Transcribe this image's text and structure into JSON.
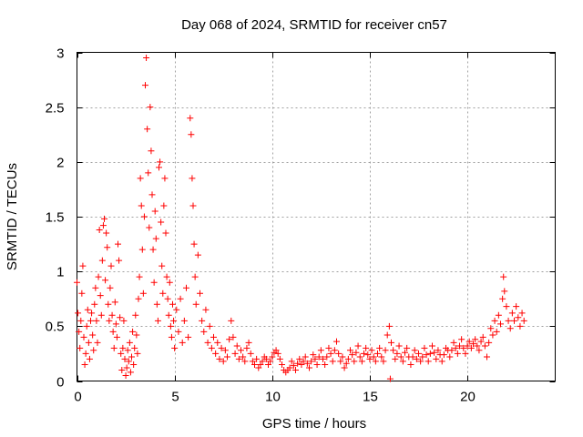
{
  "chart_data": {
    "type": "scatter",
    "title": "Day 068 of 2024, SRMTID for receiver cn57",
    "xlabel": "GPS time / hours",
    "ylabel": "SRMTID / TECUs",
    "xlim": [
      0,
      24.5
    ],
    "ylim": [
      0,
      3
    ],
    "xticks": [
      0,
      5,
      10,
      15,
      20
    ],
    "yticks": [
      0,
      0.5,
      1,
      1.5,
      2,
      2.5,
      3
    ],
    "xtick_labels": [
      "0",
      "5",
      "10",
      "15",
      "20"
    ],
    "ytick_labels": [
      "0",
      "0.5",
      "1",
      "1.5",
      "2",
      "2.5",
      "3"
    ],
    "grid": true,
    "marker": "+",
    "color": "#ff0000",
    "series": [
      {
        "name": "SRMTID",
        "points": [
          [
            0.0,
            0.9
          ],
          [
            0.05,
            0.62
          ],
          [
            0.1,
            0.45
          ],
          [
            0.15,
            0.3
          ],
          [
            0.2,
            0.55
          ],
          [
            0.25,
            0.8
          ],
          [
            0.3,
            1.05
          ],
          [
            0.35,
            0.4
          ],
          [
            0.4,
            0.15
          ],
          [
            0.45,
            0.25
          ],
          [
            0.5,
            0.5
          ],
          [
            0.55,
            0.65
          ],
          [
            0.6,
            0.35
          ],
          [
            0.65,
            0.2
          ],
          [
            0.7,
            0.55
          ],
          [
            0.75,
            0.62
          ],
          [
            0.8,
            0.42
          ],
          [
            0.85,
            0.28
          ],
          [
            0.9,
            0.7
          ],
          [
            0.95,
            0.85
          ],
          [
            1.0,
            0.55
          ],
          [
            1.05,
            0.35
          ],
          [
            1.1,
            0.95
          ],
          [
            1.15,
            1.38
          ],
          [
            1.2,
            0.78
          ],
          [
            1.25,
            0.6
          ],
          [
            1.3,
            1.1
          ],
          [
            1.35,
            1.42
          ],
          [
            1.4,
            1.48
          ],
          [
            1.45,
            0.92
          ],
          [
            1.5,
            1.35
          ],
          [
            1.55,
            1.22
          ],
          [
            1.6,
            0.7
          ],
          [
            1.65,
            0.55
          ],
          [
            1.7,
            0.85
          ],
          [
            1.75,
            1.05
          ],
          [
            1.8,
            0.6
          ],
          [
            1.85,
            0.45
          ],
          [
            1.9,
            0.3
          ],
          [
            1.95,
            0.72
          ],
          [
            2.0,
            0.52
          ],
          [
            2.05,
            0.4
          ],
          [
            2.1,
            1.25
          ],
          [
            2.15,
            1.1
          ],
          [
            2.2,
            0.58
          ],
          [
            2.25,
            0.25
          ],
          [
            2.3,
            0.1
          ],
          [
            2.35,
            0.3
          ],
          [
            2.4,
            0.55
          ],
          [
            2.45,
            0.2
          ],
          [
            2.5,
            0.05
          ],
          [
            2.55,
            0.12
          ],
          [
            2.6,
            0.28
          ],
          [
            2.65,
            0.18
          ],
          [
            2.7,
            0.35
          ],
          [
            2.75,
            0.08
          ],
          [
            2.8,
            0.22
          ],
          [
            2.85,
            0.45
          ],
          [
            2.9,
            0.15
          ],
          [
            2.95,
            0.3
          ],
          [
            3.0,
            0.6
          ],
          [
            3.05,
            0.42
          ],
          [
            3.1,
            0.25
          ],
          [
            3.15,
            0.75
          ],
          [
            3.2,
            0.95
          ],
          [
            3.25,
            1.85
          ],
          [
            3.3,
            1.6
          ],
          [
            3.35,
            1.2
          ],
          [
            3.4,
            0.8
          ],
          [
            3.45,
            1.5
          ],
          [
            3.5,
            2.7
          ],
          [
            3.55,
            2.95
          ],
          [
            3.6,
            2.3
          ],
          [
            3.65,
            1.9
          ],
          [
            3.7,
            1.4
          ],
          [
            3.75,
            2.5
          ],
          [
            3.8,
            2.1
          ],
          [
            3.85,
            1.7
          ],
          [
            3.9,
            1.2
          ],
          [
            3.95,
            0.9
          ],
          [
            4.0,
            1.55
          ],
          [
            4.05,
            1.3
          ],
          [
            4.1,
            0.7
          ],
          [
            4.15,
            0.55
          ],
          [
            4.2,
            1.95
          ],
          [
            4.25,
            2.0
          ],
          [
            4.3,
            1.45
          ],
          [
            4.35,
            1.05
          ],
          [
            4.4,
            0.8
          ],
          [
            4.45,
            1.6
          ],
          [
            4.5,
            1.85
          ],
          [
            4.55,
            1.35
          ],
          [
            4.6,
            0.95
          ],
          [
            4.65,
            0.75
          ],
          [
            4.7,
            0.6
          ],
          [
            4.75,
            0.9
          ],
          [
            4.8,
            0.5
          ],
          [
            4.85,
            0.4
          ],
          [
            4.9,
            0.7
          ],
          [
            4.95,
            0.55
          ],
          [
            5.0,
            0.3
          ],
          [
            5.1,
            0.65
          ],
          [
            5.2,
            0.45
          ],
          [
            5.3,
            0.75
          ],
          [
            5.4,
            0.35
          ],
          [
            5.5,
            0.55
          ],
          [
            5.6,
            0.85
          ],
          [
            5.7,
            0.4
          ],
          [
            5.8,
            2.4
          ],
          [
            5.85,
            2.25
          ],
          [
            5.9,
            1.85
          ],
          [
            5.95,
            1.6
          ],
          [
            6.0,
            1.25
          ],
          [
            6.05,
            0.95
          ],
          [
            6.1,
            0.7
          ],
          [
            6.2,
            1.15
          ],
          [
            6.3,
            0.8
          ],
          [
            6.4,
            0.55
          ],
          [
            6.5,
            0.45
          ],
          [
            6.6,
            0.65
          ],
          [
            6.7,
            0.35
          ],
          [
            6.8,
            0.5
          ],
          [
            6.9,
            0.3
          ],
          [
            7.0,
            0.4
          ],
          [
            7.1,
            0.25
          ],
          [
            7.2,
            0.35
          ],
          [
            7.3,
            0.2
          ],
          [
            7.4,
            0.3
          ],
          [
            7.5,
            0.18
          ],
          [
            7.6,
            0.28
          ],
          [
            7.7,
            0.22
          ],
          [
            7.8,
            0.38
          ],
          [
            7.9,
            0.55
          ],
          [
            8.0,
            0.4
          ],
          [
            8.1,
            0.25
          ],
          [
            8.2,
            0.32
          ],
          [
            8.3,
            0.2
          ],
          [
            8.4,
            0.28
          ],
          [
            8.5,
            0.22
          ],
          [
            8.6,
            0.18
          ],
          [
            8.7,
            0.3
          ],
          [
            8.8,
            0.35
          ],
          [
            8.9,
            0.25
          ],
          [
            9.0,
            0.18
          ],
          [
            9.1,
            0.15
          ],
          [
            9.2,
            0.2
          ],
          [
            9.3,
            0.12
          ],
          [
            9.4,
            0.15
          ],
          [
            9.5,
            0.18
          ],
          [
            9.6,
            0.22
          ],
          [
            9.7,
            0.2
          ],
          [
            9.8,
            0.15
          ],
          [
            9.9,
            0.18
          ],
          [
            10.0,
            0.22
          ],
          [
            10.1,
            0.26
          ],
          [
            10.2,
            0.28
          ],
          [
            10.3,
            0.25
          ],
          [
            10.4,
            0.2
          ],
          [
            10.5,
            0.15
          ],
          [
            10.6,
            0.1
          ],
          [
            10.7,
            0.08
          ],
          [
            10.8,
            0.1
          ],
          [
            10.9,
            0.12
          ],
          [
            11.0,
            0.18
          ],
          [
            11.1,
            0.14
          ],
          [
            11.2,
            0.1
          ],
          [
            11.3,
            0.16
          ],
          [
            11.4,
            0.2
          ],
          [
            11.5,
            0.15
          ],
          [
            11.6,
            0.18
          ],
          [
            11.7,
            0.22
          ],
          [
            11.8,
            0.16
          ],
          [
            11.9,
            0.12
          ],
          [
            12.0,
            0.18
          ],
          [
            12.1,
            0.24
          ],
          [
            12.2,
            0.2
          ],
          [
            12.3,
            0.15
          ],
          [
            12.4,
            0.22
          ],
          [
            12.5,
            0.28
          ],
          [
            12.6,
            0.2
          ],
          [
            12.7,
            0.15
          ],
          [
            12.8,
            0.22
          ],
          [
            12.9,
            0.3
          ],
          [
            13.0,
            0.25
          ],
          [
            13.1,
            0.18
          ],
          [
            13.2,
            0.28
          ],
          [
            13.3,
            0.36
          ],
          [
            13.4,
            0.25
          ],
          [
            13.5,
            0.18
          ],
          [
            13.6,
            0.22
          ],
          [
            13.7,
            0.12
          ],
          [
            13.8,
            0.16
          ],
          [
            13.9,
            0.2
          ],
          [
            14.0,
            0.28
          ],
          [
            14.1,
            0.24
          ],
          [
            14.2,
            0.18
          ],
          [
            14.3,
            0.26
          ],
          [
            14.4,
            0.32
          ],
          [
            14.5,
            0.22
          ],
          [
            14.6,
            0.18
          ],
          [
            14.7,
            0.25
          ],
          [
            14.8,
            0.3
          ],
          [
            14.9,
            0.24
          ],
          [
            15.0,
            0.2
          ],
          [
            15.1,
            0.28
          ],
          [
            15.2,
            0.22
          ],
          [
            15.3,
            0.18
          ],
          [
            15.4,
            0.25
          ],
          [
            15.5,
            0.3
          ],
          [
            15.6,
            0.22
          ],
          [
            15.7,
            0.18
          ],
          [
            15.8,
            0.28
          ],
          [
            15.9,
            0.42
          ],
          [
            16.0,
            0.5
          ],
          [
            16.05,
            0.02
          ],
          [
            16.1,
            0.35
          ],
          [
            16.2,
            0.28
          ],
          [
            16.3,
            0.2
          ],
          [
            16.4,
            0.25
          ],
          [
            16.5,
            0.32
          ],
          [
            16.6,
            0.22
          ],
          [
            16.7,
            0.18
          ],
          [
            16.8,
            0.26
          ],
          [
            16.9,
            0.3
          ],
          [
            17.0,
            0.22
          ],
          [
            17.1,
            0.15
          ],
          [
            17.2,
            0.22
          ],
          [
            17.3,
            0.28
          ],
          [
            17.4,
            0.2
          ],
          [
            17.5,
            0.25
          ],
          [
            17.6,
            0.18
          ],
          [
            17.7,
            0.22
          ],
          [
            17.8,
            0.3
          ],
          [
            17.9,
            0.24
          ],
          [
            18.0,
            0.18
          ],
          [
            18.1,
            0.25
          ],
          [
            18.2,
            0.32
          ],
          [
            18.3,
            0.26
          ],
          [
            18.4,
            0.2
          ],
          [
            18.5,
            0.28
          ],
          [
            18.6,
            0.24
          ],
          [
            18.7,
            0.18
          ],
          [
            18.8,
            0.24
          ],
          [
            18.9,
            0.3
          ],
          [
            19.0,
            0.28
          ],
          [
            19.1,
            0.22
          ],
          [
            19.2,
            0.28
          ],
          [
            19.3,
            0.35
          ],
          [
            19.4,
            0.3
          ],
          [
            19.5,
            0.25
          ],
          [
            19.6,
            0.32
          ],
          [
            19.7,
            0.38
          ],
          [
            19.8,
            0.3
          ],
          [
            19.9,
            0.25
          ],
          [
            20.0,
            0.32
          ],
          [
            20.1,
            0.36
          ],
          [
            20.2,
            0.3
          ],
          [
            20.3,
            0.34
          ],
          [
            20.4,
            0.38
          ],
          [
            20.5,
            0.32
          ],
          [
            20.6,
            0.28
          ],
          [
            20.7,
            0.36
          ],
          [
            20.8,
            0.4
          ],
          [
            20.9,
            0.32
          ],
          [
            21.0,
            0.22
          ],
          [
            21.1,
            0.35
          ],
          [
            21.2,
            0.48
          ],
          [
            21.3,
            0.42
          ],
          [
            21.4,
            0.55
          ],
          [
            21.5,
            0.45
          ],
          [
            21.6,
            0.6
          ],
          [
            21.7,
            0.52
          ],
          [
            21.8,
            0.75
          ],
          [
            21.85,
            0.95
          ],
          [
            21.9,
            0.82
          ],
          [
            22.0,
            0.68
          ],
          [
            22.1,
            0.55
          ],
          [
            22.2,
            0.48
          ],
          [
            22.3,
            0.62
          ],
          [
            22.4,
            0.55
          ],
          [
            22.5,
            0.68
          ],
          [
            22.6,
            0.58
          ],
          [
            22.7,
            0.5
          ],
          [
            22.8,
            0.62
          ],
          [
            22.9,
            0.55
          ]
        ]
      }
    ]
  }
}
